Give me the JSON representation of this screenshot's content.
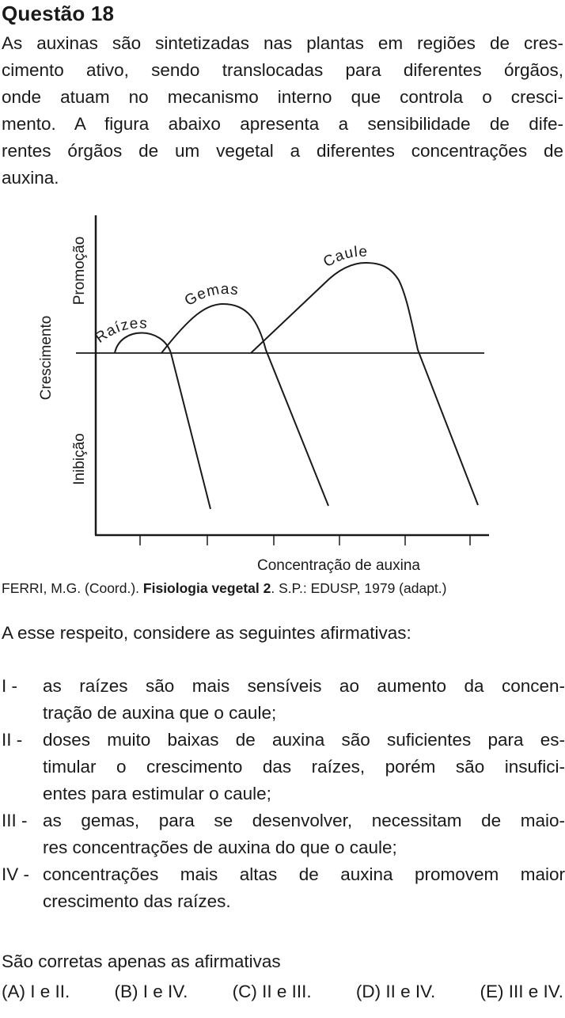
{
  "question": {
    "title": "Questão 18",
    "intro_lines": [
      "As auxinas são sintetizadas nas plantas em regiões de cres-",
      "cimento ativo, sendo translocadas para diferentes órgãos,",
      "onde atuam no mecanismo interno que controla o cresci-",
      "mento. A figura abaixo apresenta a sensibilidade de dife-",
      "rentes órgãos de um vegetal a diferentes concentrações de",
      "auxina."
    ],
    "source": {
      "before": "FERRI, M.G. (Coord.). ",
      "bold": "Fisiologia vegetal 2",
      "after": ". S.P.: EDUSP, 1979 (adapt.)"
    },
    "prompt": "A  esse respeito, considere as seguintes afirmativas:",
    "items": [
      {
        "num": "I -",
        "lines": [
          "as raízes são mais sensíveis ao aumento da concen-",
          "tração de auxina que o caule;"
        ]
      },
      {
        "num": "II -",
        "lines": [
          "doses muito baixas de auxina são suficientes para es-",
          "timular o crescimento das raízes, porém são insufici-",
          "entes para estimular o caule;"
        ]
      },
      {
        "num": "III -",
        "lines": [
          "as gemas, para se desenvolver, necessitam de maio-",
          "res concentrações de auxina do que o caule;"
        ]
      },
      {
        "num": "IV -",
        "lines": [
          "concentrações mais altas de auxina promovem maior",
          "crescimento das raízes."
        ]
      }
    ],
    "question_text": "São corretas apenas as afirmativas",
    "options": [
      "(A) I e II.",
      "(B) I e IV.",
      "(C) II e III.",
      "(D) II e IV.",
      "(E) III e IV."
    ]
  },
  "chart_data": {
    "type": "line",
    "title": "",
    "xlabel": "Concentração de auxina",
    "ylabel": "Crescimento",
    "y_region_labels": {
      "top": "Promoção",
      "bottom": "Inibição"
    },
    "grid": false,
    "qualitative": true,
    "series": [
      {
        "name": "Raízes",
        "shape": "small arch near zero, then steep decline into inhibition"
      },
      {
        "name": "Gemas",
        "shape": "medium arch at intermediate concentration, then decline into inhibition"
      },
      {
        "name": "Caule",
        "shape": "large rise peaking at high concentration, then decline into inhibition"
      }
    ],
    "colors": {
      "line": "#1a1a1a"
    }
  }
}
